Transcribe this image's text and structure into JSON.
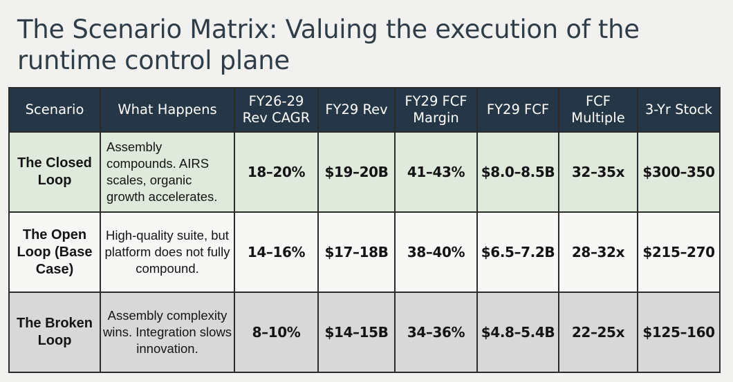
{
  "title": "The Scenario Matrix: Valuing the execution of the runtime control plane",
  "table": {
    "headers": {
      "scenario": "Scenario",
      "what": "What Happens",
      "cagr": "FY26-29 Rev CAGR",
      "rev": "FY29 Rev",
      "margin": "FY29 FCF Margin",
      "fcf": "FY29 FCF",
      "multiple": "FCF Multiple",
      "stock": "3-Yr Stock"
    },
    "rows": [
      {
        "scenario": "The Closed Loop",
        "what": "Assembly compounds. AIRS scales, organic growth accelerates.",
        "cagr": "18–20%",
        "rev": "$19–20B",
        "margin": "41–43%",
        "fcf": "$8.0–8.5B",
        "multiple": "32–35x",
        "stock": "$300–350"
      },
      {
        "scenario": "The Open Loop (Base Case)",
        "what": "High-quality suite, but platform does not fully compound.",
        "cagr": "14–16%",
        "rev": "$17–18B",
        "margin": "38–40%",
        "fcf": "$6.5–7.2B",
        "multiple": "28–32x",
        "stock": "$215–270"
      },
      {
        "scenario": "The Broken Loop",
        "what": "Assembly complexity wins. Integration slows innovation.",
        "cagr": "8–10%",
        "rev": "$14–15B",
        "margin": "34–36%",
        "fcf": "$4.8–5.4B",
        "multiple": "22–25x",
        "stock": "$125–160"
      }
    ]
  },
  "colors": {
    "header_bg": "#253746",
    "title_text": "#2f3d48",
    "row_closed_bg": "#dfe9dc",
    "row_open_bg": "#f7f7f5",
    "row_broken_bg": "#d8d8d8",
    "page_bg": "#f1f1ef"
  }
}
